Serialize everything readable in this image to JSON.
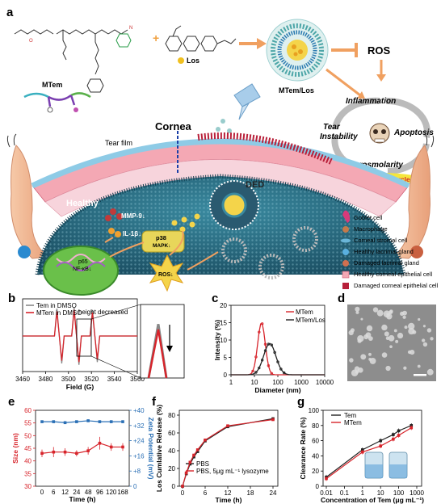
{
  "panels": {
    "a": {
      "letter": "a",
      "labels": {
        "los": "Los",
        "mtem_los": "MTem/Los",
        "ros_top": "ROS",
        "mtem": "MTem",
        "cornea": "Cornea",
        "tear_film": "Tear film",
        "healthy": "Healthy",
        "ded": "DED",
        "mmp9": "MMP-9↓",
        "il1b": "IL-1β↓",
        "p38": "p38",
        "mapk": "MAPK↓",
        "p65": "p65",
        "nfkb": "NF-κB↓",
        "ros_cell": "ROS↓"
      },
      "cycle": {
        "inflammation": "Inflammation",
        "tear1": "Tear",
        "tear2": "Instability",
        "apoptosis": "Apoptosis",
        "hyper": "Hyperosmolarity",
        "badge": "DED Vicious Cycle"
      },
      "legend": [
        "Goblet cell",
        "Macrophage",
        "Corneal stromal cell",
        "Healthy lacrimal gland",
        "Damaged lacrimal gland",
        "Healthy corneal epithelial cell",
        "Damaged corneal epithelial cell"
      ]
    },
    "b": {
      "letter": "b",
      "annotation": "height decreased"
    },
    "c": {
      "letter": "c"
    },
    "d": {
      "letter": "d"
    },
    "e": {
      "letter": "e"
    },
    "f": {
      "letter": "f"
    },
    "g": {
      "letter": "g"
    }
  },
  "colors": {
    "red": "#d7242b",
    "black": "#222222",
    "blue": "#2a6fb5",
    "orange": "#f0a060"
  },
  "chart_data": [
    {
      "id": "b",
      "type": "line",
      "xlabel": "Field (G)",
      "xlim": [
        3460,
        3560
      ],
      "xticks": [
        3460,
        3480,
        3500,
        3520,
        3540,
        3560
      ],
      "series": [
        {
          "name": "Tem in DMSO",
          "color": "#888888",
          "lines": [
            [
              3492,
              1.0
            ],
            [
              3507,
              1.05
            ],
            [
              3523,
              0.95
            ]
          ]
        },
        {
          "name": "MTem in DMSO",
          "color": "#d7242b",
          "lines": [
            [
              3492,
              0.9
            ],
            [
              3507,
              0.95
            ],
            [
              3523,
              0.85
            ]
          ]
        }
      ]
    },
    {
      "id": "c",
      "type": "line",
      "xlabel": "Diameter (nm)",
      "ylabel": "Intensity (%)",
      "ylim": [
        0,
        20
      ],
      "yticks": [
        0,
        5,
        10,
        15,
        20
      ],
      "xlog": [
        1,
        10000
      ],
      "xticks": [
        "1",
        "10",
        "100",
        "1000",
        "10000"
      ],
      "series": [
        {
          "name": "MTem",
          "color": "#d7242b",
          "peak": 20,
          "width": 0.16,
          "height": 15
        },
        {
          "name": "MTem/Los",
          "color": "#222222",
          "peak": 45,
          "width": 0.26,
          "height": 9
        }
      ]
    },
    {
      "id": "e",
      "type": "line",
      "xlabel": "Time (h)",
      "ylabel": "Size (nm)",
      "y2label": "Zeta Potential (mV)",
      "categories": [
        "0",
        "6",
        "12",
        "24",
        "48",
        "96",
        "120",
        "168"
      ],
      "ylim": [
        30,
        60
      ],
      "yticks": [
        30,
        35,
        40,
        45,
        50,
        55,
        60
      ],
      "y2lim": [
        0,
        40
      ],
      "y2ticks": [
        "0",
        "+8",
        "+16",
        "+24",
        "+32",
        "+40"
      ],
      "series": [
        {
          "name": "Size",
          "axis": "left",
          "color": "#d7242b",
          "values": [
            43,
            43.5,
            43.5,
            43,
            44,
            47,
            45.5,
            45.5
          ],
          "err": [
            1.5,
            2,
            1.5,
            1.2,
            1.5,
            2.5,
            1.5,
            1.5
          ]
        },
        {
          "name": "Zeta",
          "axis": "right",
          "color": "#2a6fb5",
          "values": [
            34,
            34,
            33.5,
            34,
            34.5,
            34,
            34,
            34
          ],
          "err": [
            0.6,
            0.5,
            0.6,
            0.5,
            0.6,
            0.5,
            0.5,
            0.5
          ]
        }
      ]
    },
    {
      "id": "f",
      "type": "line",
      "xlabel": "Time (h)",
      "ylabel": "Los Cumlative Release (%)",
      "xlim": [
        0,
        24
      ],
      "xticks": [
        0,
        6,
        12,
        18,
        24
      ],
      "ylim": [
        0,
        80
      ],
      "yticks": [
        0,
        20,
        40,
        60,
        80
      ],
      "x": [
        0,
        1,
        2,
        3,
        4,
        6,
        12,
        24
      ],
      "series": [
        {
          "name": "PBS",
          "color": "#222222",
          "values": [
            0,
            14,
            25,
            33,
            39,
            51,
            67,
            76
          ]
        },
        {
          "name": "PBS, 5μg mL⁻¹ lysozyme",
          "color": "#d7242b",
          "values": [
            0,
            15,
            27,
            35,
            41,
            52,
            68,
            75
          ]
        }
      ]
    },
    {
      "id": "g",
      "type": "line",
      "xlabel": "Concentration of Tem (μg mL⁻¹)",
      "ylabel": "Clearance Rate (%)",
      "ylim": [
        0,
        100
      ],
      "yticks": [
        0,
        20,
        40,
        60,
        80,
        100
      ],
      "xlog": [
        0.01,
        1000
      ],
      "xticks": [
        "0.01",
        "0.1",
        "1",
        "10",
        "100",
        "1000"
      ],
      "x": [
        0.01,
        1,
        10,
        50,
        100,
        500
      ],
      "series": [
        {
          "name": "Tem",
          "color": "#222222",
          "values": [
            12,
            48,
            60,
            68,
            73,
            80
          ]
        },
        {
          "name": "MTem",
          "color": "#d7242b",
          "values": [
            10,
            45,
            53,
            62,
            67,
            77
          ]
        }
      ]
    }
  ]
}
